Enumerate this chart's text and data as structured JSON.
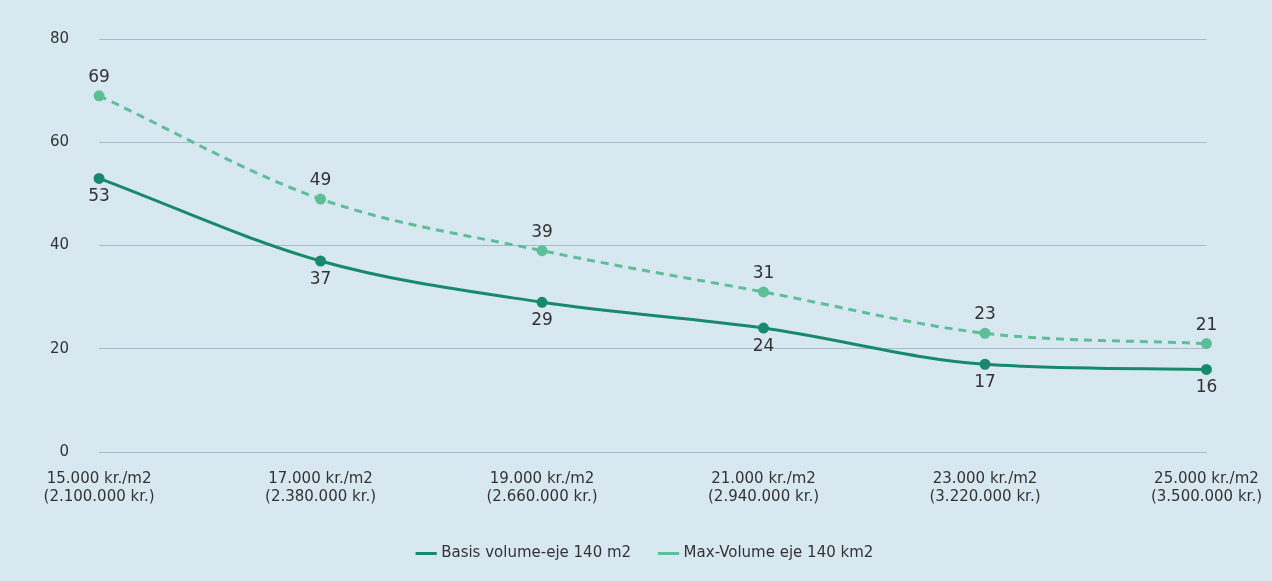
{
  "chart_data": {
    "type": "line",
    "categories": [
      "15.000 kr./m2\n(2.100.000 kr.)",
      "17.000 kr./m2\n(2.380.000 kr.)",
      "19.000 kr./m2\n(2.660.000 kr.)",
      "21.000 kr./m2\n(2.940.000 kr.)",
      "23.000 kr./m2\n(3.220.000 kr.)",
      "25.000 kr./m2\n(3.500.000 kr.)"
    ],
    "series": [
      {
        "name": "Basis volume-eje 140 m2",
        "color": "#178a6c",
        "values": [
          53,
          37,
          29,
          24,
          17,
          16
        ],
        "line_style": "solid"
      },
      {
        "name": "Max-Volume eje 140 km2",
        "color": "#5cbf98",
        "values": [
          69,
          49,
          39,
          31,
          23,
          21
        ],
        "line_style": "dashed"
      }
    ],
    "ylim": [
      0,
      80
    ],
    "yticks": [
      0,
      20,
      40,
      60,
      80
    ],
    "grid": "y",
    "legend": "bottom",
    "marker": "circle",
    "data_labels": true
  }
}
